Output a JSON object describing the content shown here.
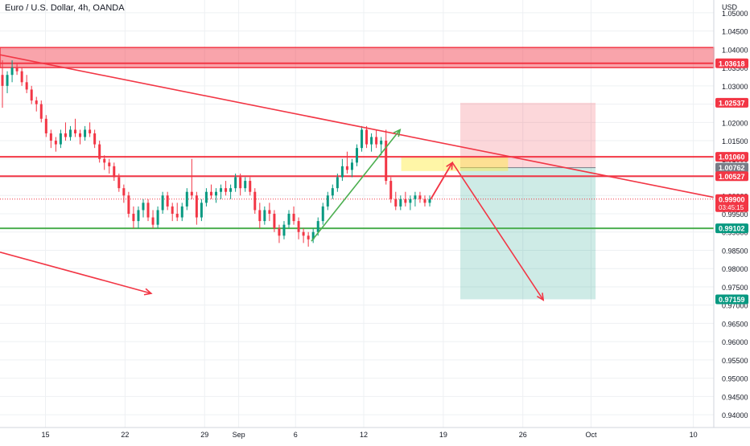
{
  "header": {
    "title": "Euro / U.S. Dollar, 4h, OANDA"
  },
  "chart_data": {
    "type": "candlestick",
    "currency": "USD",
    "y_ticks": [
      "1.05000",
      "1.04500",
      "1.04000",
      "1.03500",
      "1.03000",
      "1.02500",
      "1.02000",
      "1.01500",
      "1.01000",
      "1.00500",
      "1.00000",
      "0.99500",
      "0.99000",
      "0.98500",
      "0.98000",
      "0.97500",
      "0.97000",
      "0.96500",
      "0.96000",
      "0.95500",
      "0.95000",
      "0.94500",
      "0.94000"
    ],
    "ylim": [
      0.9365,
      1.0535
    ],
    "x_ticks": [
      {
        "label": "15",
        "day": 15
      },
      {
        "label": "22",
        "day": 22
      },
      {
        "label": "29",
        "day": 29
      },
      {
        "label": "Sep",
        "day": 32
      },
      {
        "label": "6",
        "day": 37
      },
      {
        "label": "12",
        "day": 43
      },
      {
        "label": "19",
        "day": 50
      },
      {
        "label": "26",
        "day": 57
      },
      {
        "label": "Oct",
        "day": 63
      },
      {
        "label": "10",
        "day": 72
      }
    ],
    "xlim_days": [
      11.0,
      73.8
    ],
    "price_labels": [
      {
        "value": 1.03618,
        "text": "1.03618",
        "bg": "#f23645"
      },
      {
        "value": 1.02537,
        "text": "1.02537",
        "bg": "#f23645"
      },
      {
        "value": 1.0106,
        "text": "1.01060",
        "bg": "#f23645"
      },
      {
        "value": 1.00762,
        "text": "1.00762",
        "bg": "#787b86"
      },
      {
        "value": 1.00527,
        "text": "1.00527",
        "bg": "#f23645"
      },
      {
        "value": 0.999,
        "text": "0.99900",
        "bg": "#f23645",
        "sub": "03:45:15"
      },
      {
        "value": 0.99102,
        "text": "0.99102",
        "bg": "#089981"
      },
      {
        "value": 0.97159,
        "text": "0.97159",
        "bg": "#089981"
      }
    ],
    "levels": {
      "resistance_zone": [
        1.035,
        1.0405
      ],
      "resistance_line": 1.03618,
      "level_1": 1.0106,
      "level_2": 1.00527,
      "support": 0.99102
    },
    "trendline": {
      "from": {
        "day": 11.0,
        "price": 1.0385
      },
      "to": {
        "day": 73.8,
        "price": 0.9995
      }
    },
    "channel_arrow": {
      "from": {
        "day": 11.0,
        "price": 0.9845
      },
      "to": {
        "day": 24.3,
        "price": 0.9732
      }
    },
    "position": {
      "entry": 1.00762,
      "stop": 1.02537,
      "target": 0.97159,
      "start_day": 51.5,
      "end_day": 63.4
    },
    "yellow_zone": {
      "start_day": 46.3,
      "end_day": 55.7,
      "top": 1.0107,
      "bottom": 1.0067
    },
    "up_arrow": {
      "from": {
        "day": 38.4,
        "price": 0.9875
      },
      "to": {
        "day": 46.2,
        "price": 1.018
      }
    },
    "projection": [
      {
        "day": 48.9,
        "price": 0.999
      },
      {
        "day": 50.8,
        "price": 1.009
      },
      {
        "day": 58.8,
        "price": 0.9714
      }
    ],
    "ohlc": [
      [
        1.033,
        1.037,
        1.024,
        1.03
      ],
      [
        1.03,
        1.034,
        1.028,
        1.033
      ],
      [
        1.033,
        1.037,
        1.031,
        1.035
      ],
      [
        1.035,
        1.036,
        1.033,
        1.034
      ],
      [
        1.034,
        1.035,
        1.03,
        1.031
      ],
      [
        1.031,
        1.033,
        1.028,
        1.029
      ],
      [
        1.029,
        1.03,
        1.025,
        1.026
      ],
      [
        1.026,
        1.027,
        1.023,
        1.025
      ],
      [
        1.025,
        1.026,
        1.02,
        1.021
      ],
      [
        1.021,
        1.022,
        1.016,
        1.017
      ],
      [
        1.017,
        1.018,
        1.013,
        1.015
      ],
      [
        1.015,
        1.016,
        1.012,
        1.014
      ],
      [
        1.014,
        1.018,
        1.013,
        1.017
      ],
      [
        1.017,
        1.02,
        1.015,
        1.016
      ],
      [
        1.016,
        1.019,
        1.015,
        1.018
      ],
      [
        1.018,
        1.021,
        1.016,
        1.017
      ],
      [
        1.017,
        1.018,
        1.014,
        1.016
      ],
      [
        1.016,
        1.019,
        1.015,
        1.018
      ],
      [
        1.018,
        1.02,
        1.016,
        1.017
      ],
      [
        1.017,
        1.018,
        1.013,
        1.014
      ],
      [
        1.014,
        1.015,
        1.009,
        1.01
      ],
      [
        1.01,
        1.011,
        1.007,
        1.009
      ],
      [
        1.009,
        1.01,
        1.006,
        1.008
      ],
      [
        1.008,
        1.009,
        1.004,
        1.005
      ],
      [
        1.005,
        1.006,
        1.001,
        1.002
      ],
      [
        1.002,
        1.003,
        0.998,
        1.0
      ],
      [
        1.0,
        1.001,
        0.994,
        0.995
      ],
      [
        0.995,
        0.997,
        0.991,
        0.993
      ],
      [
        0.993,
        0.997,
        0.991,
        0.996
      ],
      [
        0.996,
        0.999,
        0.994,
        0.998
      ],
      [
        0.998,
        0.999,
        0.993,
        0.994
      ],
      [
        0.994,
        0.996,
        0.991,
        0.992
      ],
      [
        0.992,
        0.997,
        0.991,
        0.996
      ],
      [
        0.996,
        1.001,
        0.995,
        1.0
      ],
      [
        1.0,
        1.001,
        0.996,
        0.997
      ],
      [
        0.997,
        0.998,
        0.993,
        0.995
      ],
      [
        0.995,
        0.998,
        0.993,
        0.994
      ],
      [
        0.994,
        0.998,
        0.993,
        0.997
      ],
      [
        0.997,
        1.002,
        0.996,
        1.001
      ],
      [
        1.001,
        1.01,
        0.999,
        1.0
      ],
      [
        1.0,
        1.001,
        0.992,
        0.994
      ],
      [
        0.994,
        0.999,
        0.993,
        0.998
      ],
      [
        0.998,
        1.002,
        0.997,
        1.001
      ],
      [
        1.001,
        1.003,
        0.999,
        1.0
      ],
      [
        1.0,
        1.002,
        0.998,
        1.001
      ],
      [
        1.001,
        1.003,
        0.999,
        1.002
      ],
      [
        1.002,
        1.004,
        1.0,
        1.001
      ],
      [
        1.001,
        1.003,
        0.999,
        1.002
      ],
      [
        1.002,
        1.006,
        1.001,
        1.005
      ],
      [
        1.005,
        1.006,
        1.0,
        1.002
      ],
      [
        1.002,
        1.005,
        1.001,
        1.004
      ],
      [
        1.004,
        1.005,
        1.0,
        1.001
      ],
      [
        1.001,
        1.002,
        0.995,
        0.996
      ],
      [
        0.996,
        0.998,
        0.991,
        0.993
      ],
      [
        0.993,
        0.997,
        0.992,
        0.996
      ],
      [
        0.996,
        0.998,
        0.993,
        0.995
      ],
      [
        0.995,
        0.996,
        0.99,
        0.991
      ],
      [
        0.991,
        0.992,
        0.987,
        0.989
      ],
      [
        0.989,
        0.993,
        0.988,
        0.992
      ],
      [
        0.992,
        0.996,
        0.991,
        0.995
      ],
      [
        0.995,
        0.997,
        0.992,
        0.993
      ],
      [
        0.993,
        0.994,
        0.988,
        0.99
      ],
      [
        0.99,
        0.991,
        0.987,
        0.989
      ],
      [
        0.989,
        0.99,
        0.986,
        0.988
      ],
      [
        0.988,
        0.991,
        0.987,
        0.99
      ],
      [
        0.99,
        0.994,
        0.989,
        0.993
      ],
      [
        0.993,
        0.998,
        0.992,
        0.997
      ],
      [
        0.997,
        1.001,
        0.996,
        1.0
      ],
      [
        1.0,
        1.003,
        0.999,
        1.002
      ],
      [
        1.002,
        1.006,
        1.001,
        1.005
      ],
      [
        1.005,
        1.01,
        1.004,
        1.008
      ],
      [
        1.008,
        1.012,
        1.006,
        1.007
      ],
      [
        1.007,
        1.01,
        1.005,
        1.009
      ],
      [
        1.009,
        1.014,
        1.008,
        1.013
      ],
      [
        1.013,
        1.019,
        1.012,
        1.018
      ],
      [
        1.018,
        1.019,
        1.013,
        1.014
      ],
      [
        1.014,
        1.017,
        1.012,
        1.016
      ],
      [
        1.016,
        1.018,
        1.013,
        1.014
      ],
      [
        1.014,
        1.016,
        1.011,
        1.015
      ],
      [
        1.015,
        1.018,
        1.003,
        1.004
      ],
      [
        1.004,
        1.005,
        0.998,
        0.999
      ],
      [
        0.999,
        1.001,
        0.996,
        0.997
      ],
      [
        0.997,
        1.0,
        0.996,
        0.999
      ],
      [
        0.999,
        1.001,
        0.997,
        0.998
      ],
      [
        0.998,
        1.0,
        0.996,
        0.999
      ],
      [
        0.999,
        1.001,
        0.997,
        1.0
      ],
      [
        1.0,
        1.001,
        0.998,
        0.999
      ],
      [
        0.999,
        1.0,
        0.997,
        0.998
      ],
      [
        0.998,
        1.0,
        0.997,
        0.999
      ]
    ]
  }
}
